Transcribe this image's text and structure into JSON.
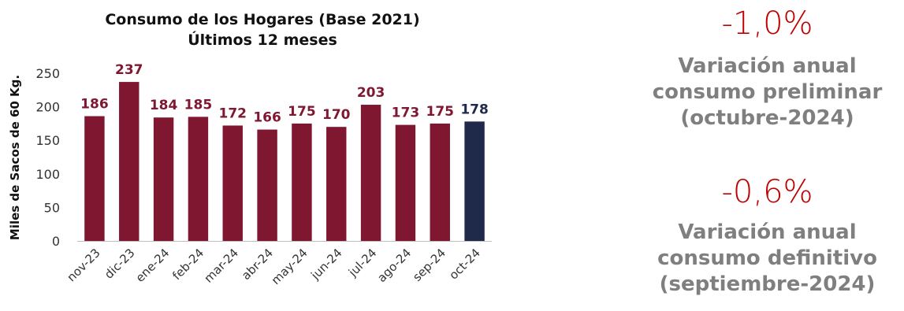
{
  "chart_data": {
    "type": "bar",
    "title": [
      "Consumo de los Hogares (Base 2021)",
      "Últimos 12 meses"
    ],
    "ylabel": "Miles de Sacos de 60 Kg.",
    "xlabel": "",
    "ylim": [
      0,
      250
    ],
    "yticks": [
      0,
      50,
      100,
      150,
      200,
      250
    ],
    "grid": false,
    "categories": [
      "nov-23",
      "dic-23",
      "ene-24",
      "feb-24",
      "mar-24",
      "abr-24",
      "may-24",
      "jun-24",
      "jul-24",
      "ago-24",
      "sep-24",
      "oct-24"
    ],
    "values": [
      186,
      237,
      184,
      185,
      172,
      166,
      175,
      170,
      203,
      173,
      175,
      178
    ],
    "colors": {
      "default": "#7f1731",
      "highlight": "#1f2a4a"
    },
    "highlight_index": 11
  },
  "stats": [
    {
      "value": "-1,0%",
      "lines": [
        "Variación anual",
        "consumo preliminar",
        "(octubre-2024)"
      ]
    },
    {
      "value": "-0,6%",
      "lines": [
        "Variación anual",
        "consumo definitivo",
        "(septiembre-2024)"
      ]
    }
  ],
  "accent_color": "#c00000"
}
